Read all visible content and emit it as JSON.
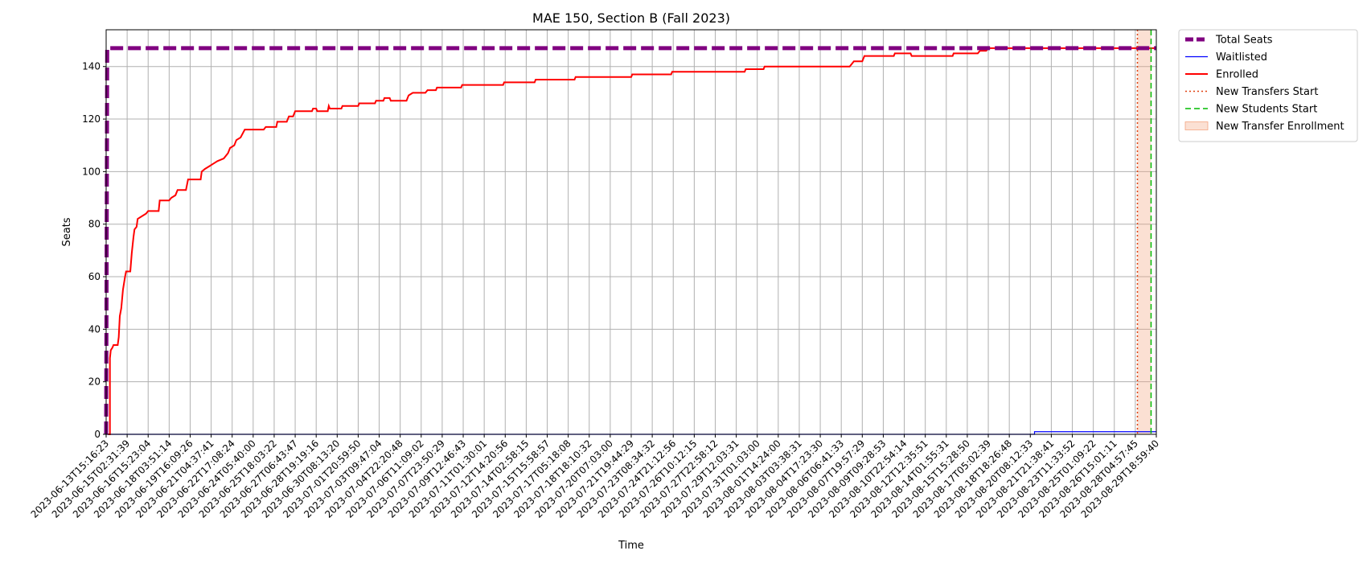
{
  "chart_data": {
    "type": "line",
    "title": "MAE 150, Section B (Fall 2023)",
    "xlabel": "Time",
    "ylabel": "Seats",
    "ylim": [
      0,
      154
    ],
    "yticks": [
      0,
      20,
      40,
      60,
      80,
      100,
      120,
      140
    ],
    "grid": true,
    "legend_position": "outside-top-right",
    "x_tick_labels": [
      "2023-06-13T15:16:23",
      "2023-06-15T02:31:39",
      "2023-06-16T15:23:04",
      "2023-06-18T03:51:14",
      "2023-06-19T16:09:26",
      "2023-06-21T04:37:41",
      "2023-06-22T17:08:24",
      "2023-06-24T05:40:00",
      "2023-06-25T18:03:22",
      "2023-06-27T06:43:47",
      "2023-06-28T19:19:16",
      "2023-06-30T08:13:20",
      "2023-07-01T20:59:50",
      "2023-07-03T09:47:04",
      "2023-07-04T22:20:48",
      "2023-07-06T11:09:02",
      "2023-07-07T23:50:29",
      "2023-07-09T12:46:43",
      "2023-07-11T01:30:01",
      "2023-07-12T14:20:56",
      "2023-07-14T02:58:15",
      "2023-07-15T15:58:57",
      "2023-07-17T05:18:08",
      "2023-07-18T18:10:32",
      "2023-07-20T07:03:00",
      "2023-07-21T19:44:29",
      "2023-07-23T08:34:32",
      "2023-07-24T21:12:56",
      "2023-07-26T10:12:15",
      "2023-07-27T22:58:12",
      "2023-07-29T12:03:31",
      "2023-07-31T01:03:00",
      "2023-08-01T14:24:00",
      "2023-08-03T03:38:31",
      "2023-08-04T17:23:30",
      "2023-08-06T06:41:33",
      "2023-08-07T19:57:29",
      "2023-08-09T09:28:53",
      "2023-08-10T22:54:14",
      "2023-08-12T12:35:51",
      "2023-08-14T01:55:31",
      "2023-08-15T15:28:50",
      "2023-08-17T05:02:39",
      "2023-08-18T18:26:48",
      "2023-08-20T08:12:33",
      "2023-08-21T21:38:41",
      "2023-08-23T11:33:52",
      "2023-08-25T01:09:22",
      "2023-08-26T15:01:11",
      "2023-08-28T04:57:45",
      "2023-08-29T18:59:40"
    ],
    "series": [
      {
        "name": "Total Seats",
        "color": "#800080",
        "style": "dashed-thick",
        "points": [
          [
            0,
            0
          ],
          [
            0.05,
            147
          ],
          [
            50,
            147
          ]
        ]
      },
      {
        "name": "Waitlisted",
        "color": "#0000ff",
        "style": "solid-thin",
        "points": [
          [
            0,
            0
          ],
          [
            44.2,
            0
          ],
          [
            44.2,
            1
          ],
          [
            50,
            1
          ]
        ]
      },
      {
        "name": "Enrolled",
        "color": "#ff0000",
        "style": "solid",
        "points": [
          [
            0.1,
            0
          ],
          [
            0.18,
            0
          ],
          [
            0.18,
            29
          ],
          [
            0.22,
            32
          ],
          [
            0.3,
            33
          ],
          [
            0.35,
            34
          ],
          [
            0.55,
            34
          ],
          [
            0.6,
            37
          ],
          [
            0.65,
            45
          ],
          [
            0.72,
            48
          ],
          [
            0.8,
            55
          ],
          [
            0.9,
            60
          ],
          [
            0.95,
            62
          ],
          [
            1.15,
            62
          ],
          [
            1.22,
            69
          ],
          [
            1.3,
            75
          ],
          [
            1.35,
            78
          ],
          [
            1.45,
            79
          ],
          [
            1.5,
            82
          ],
          [
            1.7,
            83
          ],
          [
            1.9,
            84
          ],
          [
            2.0,
            85
          ],
          [
            2.5,
            85
          ],
          [
            2.55,
            89
          ],
          [
            3.0,
            89
          ],
          [
            3.1,
            90
          ],
          [
            3.3,
            91
          ],
          [
            3.4,
            93
          ],
          [
            3.8,
            93
          ],
          [
            3.9,
            97
          ],
          [
            4.5,
            97
          ],
          [
            4.55,
            100
          ],
          [
            4.7,
            101
          ],
          [
            4.9,
            102
          ],
          [
            5.1,
            103
          ],
          [
            5.3,
            104
          ],
          [
            5.6,
            105
          ],
          [
            5.8,
            107
          ],
          [
            5.9,
            109
          ],
          [
            6.1,
            110
          ],
          [
            6.2,
            112
          ],
          [
            6.4,
            113
          ],
          [
            6.6,
            116
          ],
          [
            7.5,
            116
          ],
          [
            7.6,
            117
          ],
          [
            8.1,
            117
          ],
          [
            8.15,
            119
          ],
          [
            8.6,
            119
          ],
          [
            8.7,
            121
          ],
          [
            8.9,
            121
          ],
          [
            9.0,
            123
          ],
          [
            9.8,
            123
          ],
          [
            9.85,
            124
          ],
          [
            10.0,
            124
          ],
          [
            10.05,
            123
          ],
          [
            10.55,
            123
          ],
          [
            10.6,
            125
          ],
          [
            10.65,
            124
          ],
          [
            11.2,
            124
          ],
          [
            11.25,
            125
          ],
          [
            12.0,
            125
          ],
          [
            12.05,
            126
          ],
          [
            12.8,
            126
          ],
          [
            12.85,
            127
          ],
          [
            13.2,
            127
          ],
          [
            13.25,
            128
          ],
          [
            13.5,
            128
          ],
          [
            13.55,
            127
          ],
          [
            14.3,
            127
          ],
          [
            14.4,
            129
          ],
          [
            14.6,
            130
          ],
          [
            15.2,
            130
          ],
          [
            15.3,
            131
          ],
          [
            15.7,
            131
          ],
          [
            15.75,
            132
          ],
          [
            16.9,
            132
          ],
          [
            16.95,
            133
          ],
          [
            18.9,
            133
          ],
          [
            18.95,
            134
          ],
          [
            20.4,
            134
          ],
          [
            20.45,
            135
          ],
          [
            22.3,
            135
          ],
          [
            22.35,
            136
          ],
          [
            25.0,
            136
          ],
          [
            25.05,
            137
          ],
          [
            26.9,
            137
          ],
          [
            26.95,
            138
          ],
          [
            30.4,
            138
          ],
          [
            30.45,
            139
          ],
          [
            31.3,
            139
          ],
          [
            31.35,
            140
          ],
          [
            35.4,
            140
          ],
          [
            35.5,
            141
          ],
          [
            35.6,
            142
          ],
          [
            36.0,
            142
          ],
          [
            36.1,
            144
          ],
          [
            37.5,
            144
          ],
          [
            37.55,
            145
          ],
          [
            38.3,
            145
          ],
          [
            38.35,
            144
          ],
          [
            40.3,
            144
          ],
          [
            40.35,
            145
          ],
          [
            41.5,
            145
          ],
          [
            41.6,
            146
          ],
          [
            41.9,
            146
          ],
          [
            42.0,
            147
          ],
          [
            50,
            147
          ]
        ]
      }
    ],
    "vertical_lines": [
      {
        "name": "New Transfers Start",
        "x": 49.1,
        "color": "#e04010",
        "style": "dotted"
      },
      {
        "name": "New Students Start",
        "x": 49.75,
        "color": "#00bb00",
        "style": "dashed"
      }
    ],
    "shaded_regions": [
      {
        "name": "New Transfer Enrollment",
        "x_start": 49.1,
        "x_end": 49.75,
        "color": "#f4a582"
      }
    ],
    "legend": [
      {
        "label": "Total Seats",
        "kind": "line",
        "color": "#800080",
        "style": "dashed-thick"
      },
      {
        "label": "Waitlisted",
        "kind": "line",
        "color": "#0000ff",
        "style": "solid-thin"
      },
      {
        "label": "Enrolled",
        "kind": "line",
        "color": "#ff0000",
        "style": "solid"
      },
      {
        "label": "New Transfers Start",
        "kind": "line",
        "color": "#e04010",
        "style": "dotted"
      },
      {
        "label": "New Students Start",
        "kind": "line",
        "color": "#00bb00",
        "style": "dashed"
      },
      {
        "label": "New Transfer Enrollment",
        "kind": "patch",
        "color": "#f4a582"
      }
    ]
  }
}
